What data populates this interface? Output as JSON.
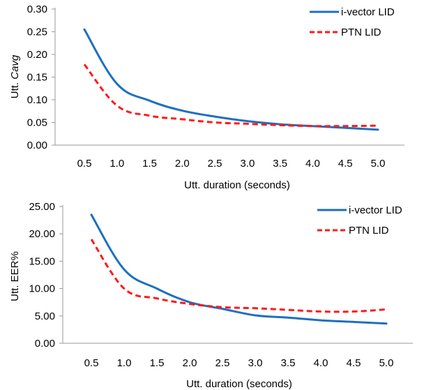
{
  "chart_data": [
    {
      "type": "line",
      "title": "",
      "xlabel": "Utt. duration (seconds)",
      "ylabel_prefix": "Utt. ",
      "ylabel_italic": "Cavg",
      "categories": [
        "0.5",
        "1.0",
        "1.5",
        "2.0",
        "2.5",
        "3.0",
        "3.5",
        "4.0",
        "4.5",
        "5.0"
      ],
      "x": [
        0.5,
        1.0,
        1.5,
        2.0,
        2.5,
        3.0,
        3.5,
        4.0,
        4.5,
        5.0
      ],
      "ylim": [
        0,
        0.3
      ],
      "yticks": [
        "0.00",
        "0.05",
        "0.10",
        "0.15",
        "0.20",
        "0.25",
        "0.30"
      ],
      "yticks_values": [
        0,
        0.05,
        0.1,
        0.15,
        0.2,
        0.25,
        0.3
      ],
      "legend_position": "top-right",
      "grid": false,
      "series": [
        {
          "name": "i-vector LID",
          "color": "#1f6fbf",
          "dash": "solid",
          "values": [
            0.255,
            0.135,
            0.098,
            0.076,
            0.063,
            0.053,
            0.046,
            0.042,
            0.038,
            0.034
          ]
        },
        {
          "name": "PTN LID",
          "color": "#ff1a1a",
          "dash": "dashed",
          "values": [
            0.178,
            0.087,
            0.065,
            0.057,
            0.05,
            0.047,
            0.044,
            0.042,
            0.042,
            0.043
          ]
        }
      ]
    },
    {
      "type": "line",
      "title": "",
      "xlabel": "Utt. duration (seconds)",
      "ylabel_prefix": "Utt. EER%",
      "ylabel_italic": "",
      "categories": [
        "0.5",
        "1.0",
        "1.5",
        "2.0",
        "2.5",
        "3.0",
        "3.5",
        "4.0",
        "4.5",
        "5.0"
      ],
      "x": [
        0.5,
        1.0,
        1.5,
        2.0,
        2.5,
        3.0,
        3.5,
        4.0,
        4.5,
        5.0
      ],
      "ylim": [
        0,
        25
      ],
      "yticks": [
        "0.00",
        "5.00",
        "10.00",
        "15.00",
        "20.00",
        "25.00"
      ],
      "yticks_values": [
        0,
        5,
        10,
        15,
        20,
        25
      ],
      "legend_position": "top-right",
      "grid": false,
      "series": [
        {
          "name": "i-vector LID",
          "color": "#1f6fbf",
          "dash": "solid",
          "values": [
            23.5,
            13.5,
            10.0,
            7.5,
            6.3,
            5.1,
            4.7,
            4.2,
            3.9,
            3.6
          ]
        },
        {
          "name": "PTN LID",
          "color": "#ff1a1a",
          "dash": "dashed",
          "values": [
            19.0,
            10.0,
            8.2,
            7.2,
            6.6,
            6.4,
            6.1,
            5.8,
            5.8,
            6.2
          ]
        }
      ]
    }
  ]
}
